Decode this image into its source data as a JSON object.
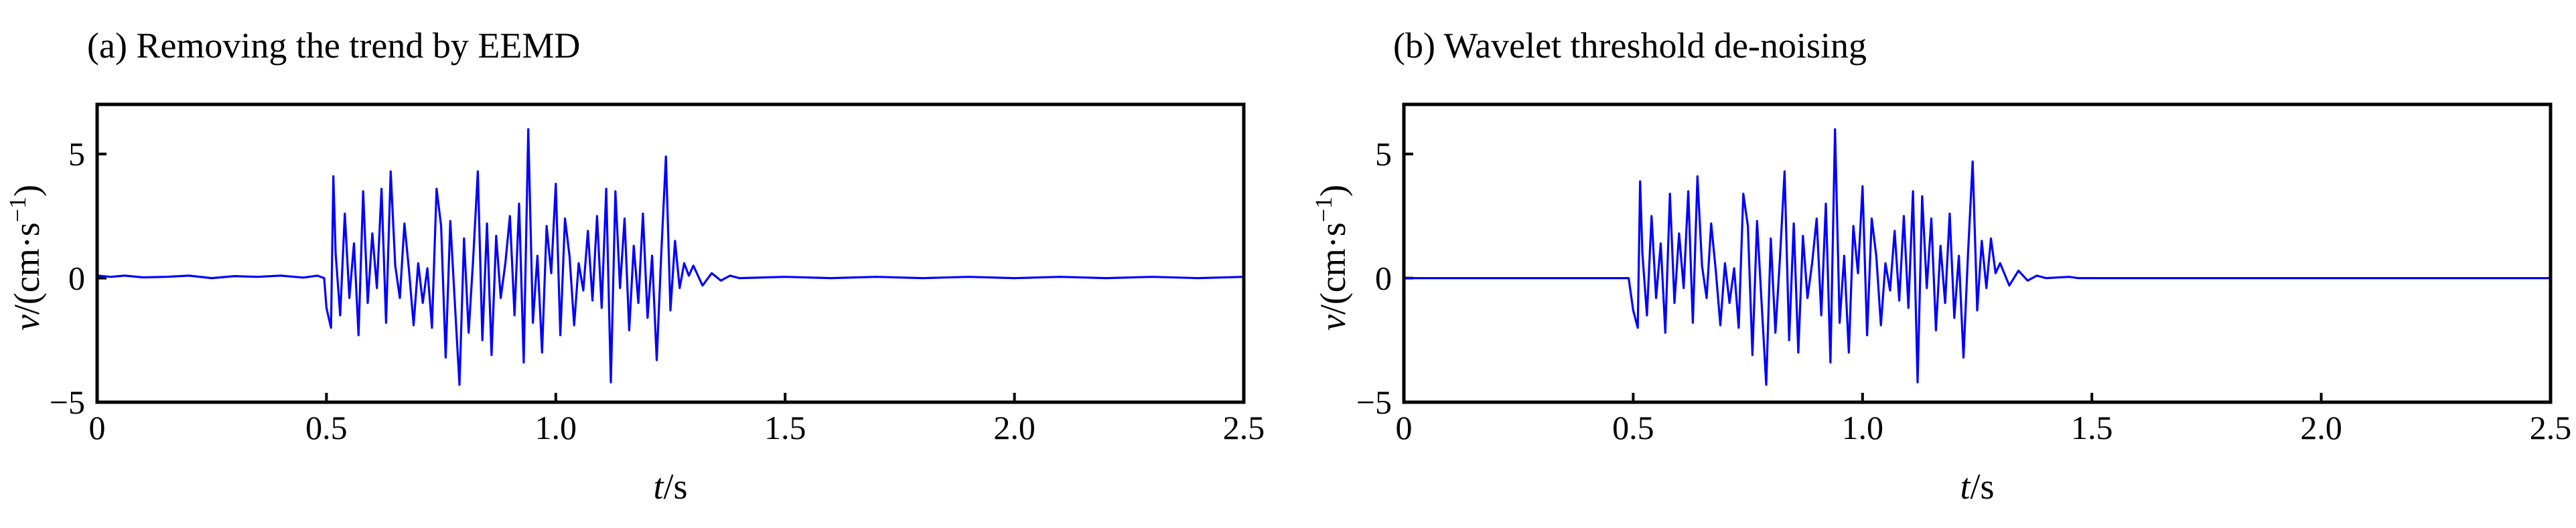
{
  "chart_data": [
    {
      "type": "line",
      "title": "(a) Removing the trend by EEMD",
      "xlabel_var": "t",
      "xlabel_unit": "/s",
      "ylabel_var": "v",
      "ylabel_unit": "/(cm·s",
      "ylabel_sup": "−1",
      "ylabel_close": ")",
      "xlim": [
        0,
        2.5
      ],
      "ylim": [
        -5,
        7
      ],
      "xticks": [
        0,
        0.5,
        1.0,
        1.5,
        2.0,
        2.5
      ],
      "xtick_labels": [
        "0",
        "0.5",
        "1.0",
        "1.5",
        "2.0",
        "2.5"
      ],
      "yticks": [
        -5,
        0,
        5
      ],
      "ytick_labels": [
        "−5",
        "0",
        "5"
      ],
      "grid": false,
      "series": [
        {
          "color": "#0000ff",
          "points": [
            [
              0,
              0.1
            ],
            [
              0.03,
              0.05
            ],
            [
              0.06,
              0.1
            ],
            [
              0.1,
              0.03
            ],
            [
              0.15,
              0.05
            ],
            [
              0.2,
              0.1
            ],
            [
              0.25,
              0
            ],
            [
              0.3,
              0.08
            ],
            [
              0.35,
              0.05
            ],
            [
              0.4,
              0.1
            ],
            [
              0.45,
              0.02
            ],
            [
              0.48,
              0.1
            ],
            [
              0.495,
              0
            ],
            [
              0.5,
              -1.2
            ],
            [
              0.51,
              -2.0
            ],
            [
              0.515,
              4.1
            ],
            [
              0.52,
              1.0
            ],
            [
              0.53,
              -1.5
            ],
            [
              0.54,
              2.6
            ],
            [
              0.55,
              -0.8
            ],
            [
              0.56,
              1.4
            ],
            [
              0.57,
              -2.3
            ],
            [
              0.58,
              3.5
            ],
            [
              0.59,
              -1.0
            ],
            [
              0.6,
              1.8
            ],
            [
              0.61,
              -0.4
            ],
            [
              0.62,
              3.6
            ],
            [
              0.63,
              -1.8
            ],
            [
              0.64,
              4.3
            ],
            [
              0.65,
              0.5
            ],
            [
              0.66,
              -0.8
            ],
            [
              0.67,
              2.2
            ],
            [
              0.68,
              0.3
            ],
            [
              0.69,
              -1.9
            ],
            [
              0.7,
              0.6
            ],
            [
              0.71,
              -1.0
            ],
            [
              0.72,
              0.4
            ],
            [
              0.73,
              -2.0
            ],
            [
              0.74,
              3.6
            ],
            [
              0.75,
              2.1
            ],
            [
              0.76,
              -3.2
            ],
            [
              0.77,
              2.3
            ],
            [
              0.78,
              -1.0
            ],
            [
              0.79,
              -4.3
            ],
            [
              0.8,
              1.6
            ],
            [
              0.81,
              -2.2
            ],
            [
              0.82,
              0.8
            ],
            [
              0.83,
              4.3
            ],
            [
              0.84,
              -2.5
            ],
            [
              0.85,
              2.2
            ],
            [
              0.86,
              -3.1
            ],
            [
              0.87,
              1.7
            ],
            [
              0.88,
              -0.8
            ],
            [
              0.89,
              0.6
            ],
            [
              0.9,
              2.5
            ],
            [
              0.91,
              -1.5
            ],
            [
              0.92,
              3.0
            ],
            [
              0.93,
              -3.4
            ],
            [
              0.94,
              6.0
            ],
            [
              0.95,
              -1.8
            ],
            [
              0.96,
              0.9
            ],
            [
              0.97,
              -3.0
            ],
            [
              0.98,
              2.1
            ],
            [
              0.99,
              0.2
            ],
            [
              1.0,
              3.8
            ],
            [
              1.01,
              -2.3
            ],
            [
              1.02,
              2.4
            ],
            [
              1.03,
              0.9
            ],
            [
              1.04,
              -1.9
            ],
            [
              1.05,
              0.6
            ],
            [
              1.06,
              -0.5
            ],
            [
              1.07,
              1.9
            ],
            [
              1.08,
              -0.9
            ],
            [
              1.09,
              2.5
            ],
            [
              1.1,
              -1.2
            ],
            [
              1.11,
              3.6
            ],
            [
              1.12,
              -4.2
            ],
            [
              1.13,
              3.5
            ],
            [
              1.14,
              -0.4
            ],
            [
              1.15,
              2.4
            ],
            [
              1.16,
              -2.1
            ],
            [
              1.17,
              1.3
            ],
            [
              1.18,
              -1.0
            ],
            [
              1.19,
              2.6
            ],
            [
              1.2,
              -1.6
            ],
            [
              1.21,
              0.9
            ],
            [
              1.22,
              -3.3
            ],
            [
              1.23,
              1.0
            ],
            [
              1.24,
              4.9
            ],
            [
              1.25,
              -1.3
            ],
            [
              1.26,
              1.5
            ],
            [
              1.27,
              -0.4
            ],
            [
              1.28,
              0.6
            ],
            [
              1.29,
              0.1
            ],
            [
              1.3,
              0.5
            ],
            [
              1.32,
              -0.3
            ],
            [
              1.34,
              0.2
            ],
            [
              1.36,
              -0.1
            ],
            [
              1.38,
              0.1
            ],
            [
              1.4,
              0
            ],
            [
              1.5,
              0.05
            ],
            [
              1.6,
              0
            ],
            [
              1.7,
              0.05
            ],
            [
              1.8,
              0
            ],
            [
              1.9,
              0.05
            ],
            [
              2.0,
              0
            ],
            [
              2.1,
              0.05
            ],
            [
              2.2,
              0
            ],
            [
              2.3,
              0.05
            ],
            [
              2.4,
              0
            ],
            [
              2.5,
              0.05
            ]
          ]
        }
      ]
    },
    {
      "type": "line",
      "title": "(b) Wavelet threshold de-noising",
      "xlabel_var": "t",
      "xlabel_unit": "/s",
      "ylabel_var": "v",
      "ylabel_unit": "/(cm·s",
      "ylabel_sup": "−1",
      "ylabel_close": ")",
      "xlim": [
        0,
        2.5
      ],
      "ylim": [
        -5,
        7
      ],
      "xticks": [
        0,
        0.5,
        1.0,
        1.5,
        2.0,
        2.5
      ],
      "xtick_labels": [
        "0",
        "0.5",
        "1.0",
        "1.5",
        "2.0",
        "2.5"
      ],
      "yticks": [
        -5,
        0,
        5
      ],
      "ytick_labels": [
        "−5",
        "0",
        "5"
      ],
      "grid": false,
      "series": [
        {
          "color": "#0000ff",
          "points": [
            [
              0,
              0
            ],
            [
              0.49,
              0
            ],
            [
              0.5,
              -1.3
            ],
            [
              0.51,
              -2.0
            ],
            [
              0.515,
              3.9
            ],
            [
              0.52,
              1.0
            ],
            [
              0.53,
              -1.5
            ],
            [
              0.54,
              2.5
            ],
            [
              0.55,
              -0.8
            ],
            [
              0.56,
              1.4
            ],
            [
              0.57,
              -2.2
            ],
            [
              0.58,
              3.4
            ],
            [
              0.59,
              -1.0
            ],
            [
              0.6,
              1.8
            ],
            [
              0.61,
              -0.4
            ],
            [
              0.62,
              3.5
            ],
            [
              0.63,
              -1.8
            ],
            [
              0.64,
              4.1
            ],
            [
              0.65,
              0.5
            ],
            [
              0.66,
              -0.8
            ],
            [
              0.67,
              2.2
            ],
            [
              0.68,
              0.3
            ],
            [
              0.69,
              -1.9
            ],
            [
              0.7,
              0.6
            ],
            [
              0.71,
              -1.0
            ],
            [
              0.72,
              0.4
            ],
            [
              0.73,
              -2.0
            ],
            [
              0.74,
              3.4
            ],
            [
              0.75,
              2.1
            ],
            [
              0.76,
              -3.1
            ],
            [
              0.77,
              2.3
            ],
            [
              0.78,
              -1.0
            ],
            [
              0.79,
              -4.3
            ],
            [
              0.8,
              1.6
            ],
            [
              0.81,
              -2.2
            ],
            [
              0.82,
              0.8
            ],
            [
              0.83,
              4.3
            ],
            [
              0.84,
              -2.5
            ],
            [
              0.85,
              2.2
            ],
            [
              0.86,
              -3.0
            ],
            [
              0.87,
              1.7
            ],
            [
              0.88,
              -0.8
            ],
            [
              0.89,
              0.6
            ],
            [
              0.9,
              2.4
            ],
            [
              0.91,
              -1.5
            ],
            [
              0.92,
              3.0
            ],
            [
              0.93,
              -3.4
            ],
            [
              0.94,
              6.0
            ],
            [
              0.95,
              -1.8
            ],
            [
              0.96,
              0.9
            ],
            [
              0.97,
              -3.0
            ],
            [
              0.98,
              2.1
            ],
            [
              0.99,
              0.2
            ],
            [
              1.0,
              3.7
            ],
            [
              1.01,
              -2.3
            ],
            [
              1.02,
              2.4
            ],
            [
              1.03,
              0.9
            ],
            [
              1.04,
              -1.9
            ],
            [
              1.05,
              0.6
            ],
            [
              1.06,
              -0.5
            ],
            [
              1.07,
              1.9
            ],
            [
              1.08,
              -0.9
            ],
            [
              1.09,
              2.5
            ],
            [
              1.1,
              -1.2
            ],
            [
              1.11,
              3.5
            ],
            [
              1.12,
              -4.2
            ],
            [
              1.13,
              3.3
            ],
            [
              1.14,
              -0.4
            ],
            [
              1.15,
              2.4
            ],
            [
              1.16,
              -2.1
            ],
            [
              1.17,
              1.3
            ],
            [
              1.18,
              -1.0
            ],
            [
              1.19,
              2.6
            ],
            [
              1.2,
              -1.6
            ],
            [
              1.21,
              0.9
            ],
            [
              1.22,
              -3.2
            ],
            [
              1.23,
              1.0
            ],
            [
              1.24,
              4.7
            ],
            [
              1.25,
              -1.3
            ],
            [
              1.26,
              1.5
            ],
            [
              1.27,
              -0.4
            ],
            [
              1.28,
              1.6
            ],
            [
              1.29,
              0.2
            ],
            [
              1.3,
              0.6
            ],
            [
              1.32,
              -0.3
            ],
            [
              1.34,
              0.3
            ],
            [
              1.36,
              -0.1
            ],
            [
              1.38,
              0.1
            ],
            [
              1.4,
              0
            ],
            [
              1.45,
              0.05
            ],
            [
              1.47,
              0
            ],
            [
              2.5,
              0
            ]
          ]
        }
      ]
    }
  ]
}
